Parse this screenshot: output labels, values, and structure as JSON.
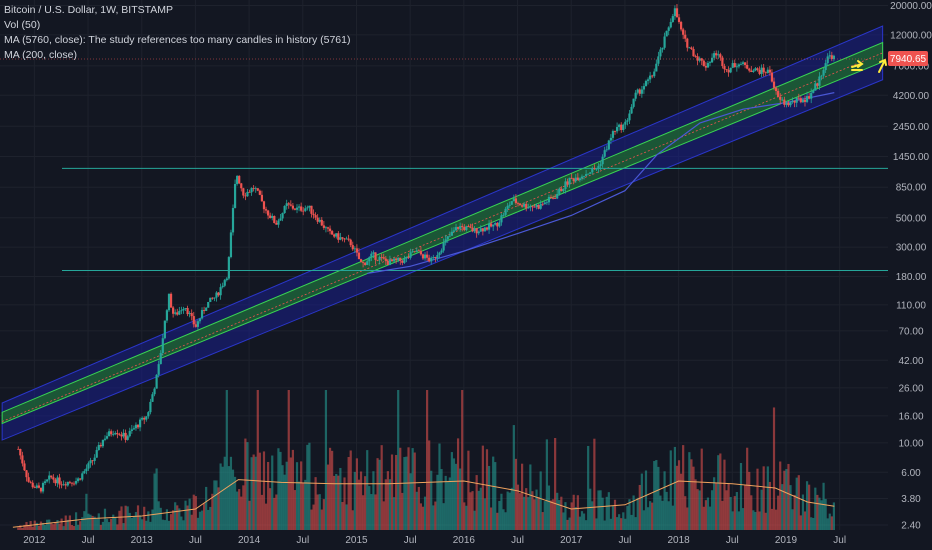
{
  "legend": {
    "title": "Bitcoin / U.S. Dollar, 1W, BITSTAMP",
    "vol": "Vol (50)",
    "ma5760": "MA (5760, close): The study references too many candles in history (5761)",
    "ma200": "MA (200, close)"
  },
  "price_label": {
    "value": "7940.65",
    "color": "#ef5350"
  },
  "colors": {
    "background": "#131722",
    "grid": "#1e222d",
    "up": "#26a69a",
    "down": "#ef5350",
    "channel_outer": "#1a1f8c",
    "channel_inner": "#1d6b2a",
    "ma200": "#4a58d6",
    "vol_ma": "#f0a35e",
    "hline": "#26a69a",
    "arrow": "#ffeb3b"
  },
  "chart_data": {
    "type": "candlestick",
    "title": "Bitcoin / U.S. Dollar, 1W, BITSTAMP",
    "scale": "log",
    "ylim": [
      2.2,
      22000
    ],
    "xlim": [
      "2011-09",
      "2019-09"
    ],
    "y_ticks": [
      20000.0,
      12000.0,
      7000.0,
      4200.0,
      2450.0,
      1450.0,
      850.0,
      500.0,
      300.0,
      180.0,
      110.0,
      70.0,
      42.0,
      26.0,
      16.0,
      10.0,
      6.0,
      3.8,
      2.4
    ],
    "y_tick_labels": [
      "20000.00",
      "12000.00",
      "7000.00",
      "4200.00",
      "2450.00",
      "1450.00",
      "850.00",
      "500.00",
      "300.00",
      "180.00",
      "110.00",
      "70.00",
      "42.00",
      "26.00",
      "16.00",
      "10.00",
      "6.00",
      "3.80",
      "2.40"
    ],
    "x_ticks": [
      {
        "t": 2012.0,
        "label": "2012"
      },
      {
        "t": 2012.5,
        "label": "Jul"
      },
      {
        "t": 2013.0,
        "label": "2013"
      },
      {
        "t": 2013.5,
        "label": "Jul"
      },
      {
        "t": 2014.0,
        "label": "2014"
      },
      {
        "t": 2014.5,
        "label": "Jul"
      },
      {
        "t": 2015.0,
        "label": "2015"
      },
      {
        "t": 2015.5,
        "label": "Jul"
      },
      {
        "t": 2016.0,
        "label": "2016"
      },
      {
        "t": 2016.5,
        "label": "Jul"
      },
      {
        "t": 2017.0,
        "label": "2017"
      },
      {
        "t": 2017.5,
        "label": "Jul"
      },
      {
        "t": 2018.0,
        "label": "2018"
      },
      {
        "t": 2018.5,
        "label": "Jul"
      },
      {
        "t": 2019.0,
        "label": "2019"
      },
      {
        "t": 2019.5,
        "label": "Jul"
      }
    ],
    "price_path": [
      [
        2011.85,
        9
      ],
      [
        2011.95,
        5
      ],
      [
        2012.05,
        4.4
      ],
      [
        2012.15,
        5.5
      ],
      [
        2012.25,
        5.0
      ],
      [
        2012.4,
        5.2
      ],
      [
        2012.55,
        7.5
      ],
      [
        2012.65,
        11
      ],
      [
        2012.75,
        12.5
      ],
      [
        2012.85,
        11
      ],
      [
        2012.95,
        13.4
      ],
      [
        2013.05,
        16
      ],
      [
        2013.15,
        34
      ],
      [
        2013.25,
        130
      ],
      [
        2013.3,
        90
      ],
      [
        2013.4,
        110
      ],
      [
        2013.5,
        75
      ],
      [
        2013.6,
        110
      ],
      [
        2013.7,
        130
      ],
      [
        2013.8,
        190
      ],
      [
        2013.88,
        1100
      ],
      [
        2013.95,
        750
      ],
      [
        2014.05,
        850
      ],
      [
        2014.15,
        580
      ],
      [
        2014.25,
        450
      ],
      [
        2014.35,
        620
      ],
      [
        2014.45,
        580
      ],
      [
        2014.55,
        600
      ],
      [
        2014.65,
        480
      ],
      [
        2014.75,
        380
      ],
      [
        2014.85,
        350
      ],
      [
        2014.95,
        320
      ],
      [
        2015.05,
        220
      ],
      [
        2015.15,
        260
      ],
      [
        2015.3,
        230
      ],
      [
        2015.45,
        240
      ],
      [
        2015.55,
        280
      ],
      [
        2015.7,
        235
      ],
      [
        2015.85,
        350
      ],
      [
        2015.95,
        430
      ],
      [
        2016.1,
        400
      ],
      [
        2016.3,
        440
      ],
      [
        2016.45,
        680
      ],
      [
        2016.55,
        620
      ],
      [
        2016.7,
        610
      ],
      [
        2016.85,
        730
      ],
      [
        2016.98,
        960
      ],
      [
        2017.1,
        1050
      ],
      [
        2017.25,
        1200
      ],
      [
        2017.4,
        2300
      ],
      [
        2017.5,
        2500
      ],
      [
        2017.6,
        4200
      ],
      [
        2017.75,
        5800
      ],
      [
        2017.85,
        9800
      ],
      [
        2017.96,
        19000
      ],
      [
        2018.05,
        11000
      ],
      [
        2018.15,
        8500
      ],
      [
        2018.25,
        7000
      ],
      [
        2018.35,
        8800
      ],
      [
        2018.45,
        6500
      ],
      [
        2018.55,
        7400
      ],
      [
        2018.7,
        6500
      ],
      [
        2018.85,
        6300
      ],
      [
        2018.92,
        4000
      ],
      [
        2019.0,
        3600
      ],
      [
        2019.1,
        3800
      ],
      [
        2019.2,
        4000
      ],
      [
        2019.3,
        5300
      ],
      [
        2019.38,
        7900
      ],
      [
        2019.42,
        8500
      ],
      [
        2019.45,
        7940.65
      ]
    ],
    "horizontal_lines": [
      1180,
      200
    ],
    "channel": {
      "outer": [
        [
          2011.7,
          10.5,
          20
        ],
        [
          2019.9,
          5500,
          14000
        ]
      ],
      "inner": [
        [
          2011.7,
          14,
          17
        ],
        [
          2019.9,
          7500,
          10500
        ]
      ]
    },
    "ma200_path": [
      [
        2015.1,
        190
      ],
      [
        2015.5,
        215
      ],
      [
        2016.0,
        280
      ],
      [
        2016.5,
        380
      ],
      [
        2017.0,
        520
      ],
      [
        2017.5,
        800
      ],
      [
        2017.8,
        1500
      ],
      [
        2018.2,
        2600
      ],
      [
        2018.6,
        3300
      ],
      [
        2019.0,
        3700
      ],
      [
        2019.45,
        4400
      ]
    ],
    "volume_ma_path": [
      [
        2011.8,
        0.02
      ],
      [
        2012.5,
        0.08
      ],
      [
        2013.0,
        0.1
      ],
      [
        2013.5,
        0.15
      ],
      [
        2013.9,
        0.36
      ],
      [
        2014.3,
        0.34
      ],
      [
        2014.8,
        0.33
      ],
      [
        2015.3,
        0.33
      ],
      [
        2016.0,
        0.35
      ],
      [
        2016.5,
        0.28
      ],
      [
        2017.0,
        0.15
      ],
      [
        2017.5,
        0.18
      ],
      [
        2018.0,
        0.35
      ],
      [
        2018.5,
        0.33
      ],
      [
        2018.9,
        0.3
      ],
      [
        2019.2,
        0.2
      ],
      [
        2019.45,
        0.17
      ]
    ]
  }
}
